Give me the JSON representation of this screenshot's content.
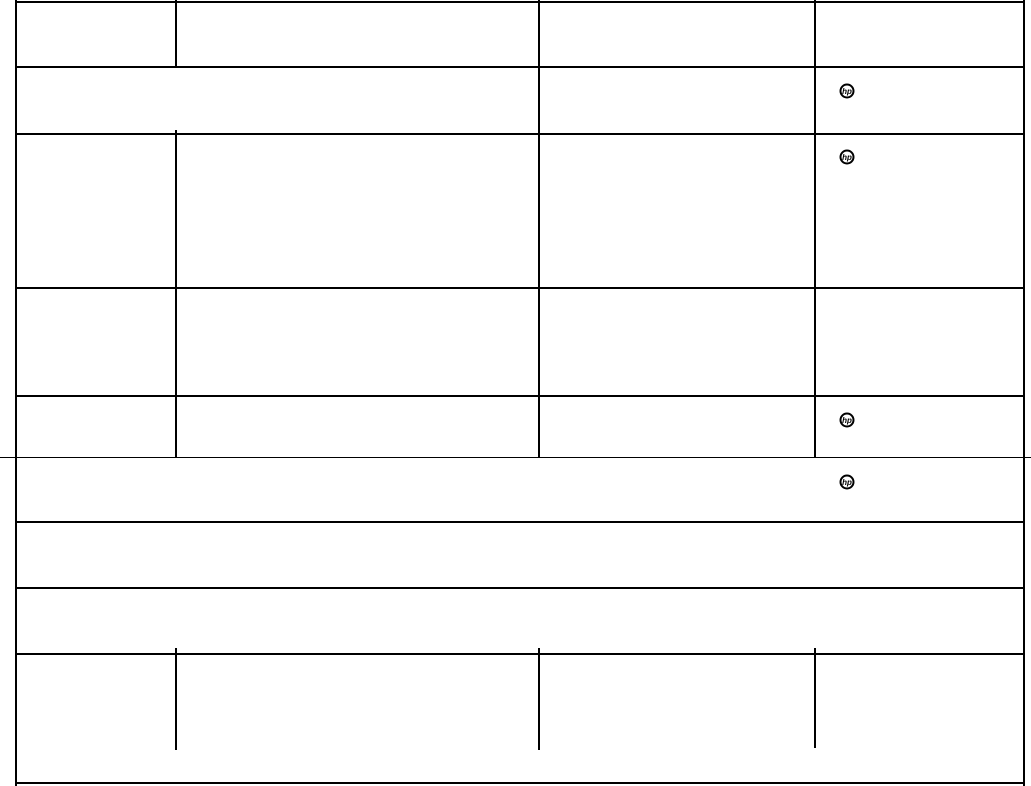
{
  "form": {
    "logos": [
      {
        "icon": "hp-logo-icon",
        "row": 2
      },
      {
        "icon": "hp-logo-icon",
        "row": 3
      },
      {
        "icon": "hp-logo-icon",
        "row": 5
      },
      {
        "icon": "hp-logo-icon",
        "row": 6
      }
    ]
  }
}
